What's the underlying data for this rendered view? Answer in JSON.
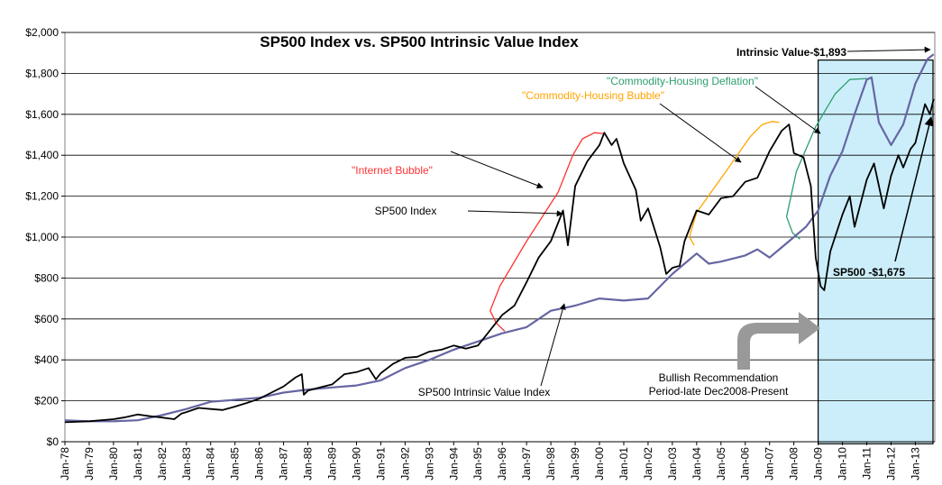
{
  "chart_data": {
    "type": "line",
    "title": "SP500 Index vs. SP500 Intrinsic Value Index",
    "xlabel": "",
    "ylabel": "",
    "ylim": [
      0,
      2000
    ],
    "grid": "horizontal",
    "y_ticks": [
      "$0",
      "$200",
      "$400",
      "$600",
      "$800",
      "$1,000",
      "$1,200",
      "$1,400",
      "$1,600",
      "$1,800",
      "$2,000"
    ],
    "x_ticks": [
      "Jan-78",
      "Jan-79",
      "Jan-80",
      "Jan-81",
      "Jan-82",
      "Jan-83",
      "Jan-84",
      "Jan-85",
      "Jan-86",
      "Jan-87",
      "Jan-88",
      "Jan-89",
      "Jan-90",
      "Jan-91",
      "Jan-92",
      "Jan-93",
      "Jan-94",
      "Jan-95",
      "Jan-96",
      "Jan-97",
      "Jan-98",
      "Jan-99",
      "Jan-00",
      "Jan-01",
      "Jan-02",
      "Jan-03",
      "Jan-04",
      "Jan-05",
      "Jan-06",
      "Jan-07",
      "Jan-08",
      "Jan-09",
      "Jan-10",
      "Jan-11",
      "Jan-12",
      "Jan-13"
    ],
    "series": [
      {
        "name": "SP500 Index",
        "color": "#000000",
        "points": [
          [
            1978.0,
            95
          ],
          [
            1979.0,
            100
          ],
          [
            1980.0,
            110
          ],
          [
            1980.5,
            120
          ],
          [
            1981.0,
            133
          ],
          [
            1981.5,
            125
          ],
          [
            1982.0,
            118
          ],
          [
            1982.5,
            110
          ],
          [
            1982.8,
            138
          ],
          [
            1983.0,
            145
          ],
          [
            1983.5,
            165
          ],
          [
            1984.0,
            160
          ],
          [
            1984.5,
            155
          ],
          [
            1985.0,
            172
          ],
          [
            1985.5,
            190
          ],
          [
            1986.0,
            210
          ],
          [
            1986.5,
            240
          ],
          [
            1987.0,
            270
          ],
          [
            1987.5,
            315
          ],
          [
            1987.75,
            330
          ],
          [
            1987.83,
            230
          ],
          [
            1988.0,
            250
          ],
          [
            1988.5,
            265
          ],
          [
            1989.0,
            280
          ],
          [
            1989.5,
            330
          ],
          [
            1990.0,
            340
          ],
          [
            1990.5,
            360
          ],
          [
            1990.8,
            305
          ],
          [
            1991.0,
            335
          ],
          [
            1991.5,
            380
          ],
          [
            1992.0,
            410
          ],
          [
            1992.5,
            415
          ],
          [
            1993.0,
            440
          ],
          [
            1993.5,
            450
          ],
          [
            1994.0,
            470
          ],
          [
            1994.5,
            455
          ],
          [
            1995.0,
            470
          ],
          [
            1995.5,
            545
          ],
          [
            1996.0,
            620
          ],
          [
            1996.5,
            665
          ],
          [
            1997.0,
            780
          ],
          [
            1997.5,
            900
          ],
          [
            1998.0,
            980
          ],
          [
            1998.5,
            1130
          ],
          [
            1998.7,
            960
          ],
          [
            1999.0,
            1250
          ],
          [
            1999.5,
            1370
          ],
          [
            2000.0,
            1450
          ],
          [
            2000.2,
            1510
          ],
          [
            2000.5,
            1450
          ],
          [
            2000.7,
            1480
          ],
          [
            2001.0,
            1360
          ],
          [
            2001.5,
            1230
          ],
          [
            2001.7,
            1080
          ],
          [
            2002.0,
            1140
          ],
          [
            2002.5,
            950
          ],
          [
            2002.75,
            820
          ],
          [
            2003.0,
            850
          ],
          [
            2003.3,
            860
          ],
          [
            2003.5,
            980
          ],
          [
            2004.0,
            1130
          ],
          [
            2004.5,
            1110
          ],
          [
            2005.0,
            1190
          ],
          [
            2005.5,
            1200
          ],
          [
            2006.0,
            1270
          ],
          [
            2006.5,
            1290
          ],
          [
            2007.0,
            1420
          ],
          [
            2007.5,
            1520
          ],
          [
            2007.8,
            1550
          ],
          [
            2008.0,
            1410
          ],
          [
            2008.4,
            1390
          ],
          [
            2008.7,
            1250
          ],
          [
            2008.9,
            900
          ],
          [
            2009.1,
            760
          ],
          [
            2009.25,
            740
          ],
          [
            2009.5,
            930
          ],
          [
            2010.0,
            1110
          ],
          [
            2010.3,
            1200
          ],
          [
            2010.5,
            1050
          ],
          [
            2011.0,
            1280
          ],
          [
            2011.3,
            1360
          ],
          [
            2011.7,
            1140
          ],
          [
            2012.0,
            1300
          ],
          [
            2012.3,
            1400
          ],
          [
            2012.5,
            1340
          ],
          [
            2012.8,
            1430
          ],
          [
            2013.0,
            1460
          ],
          [
            2013.4,
            1650
          ],
          [
            2013.6,
            1600
          ],
          [
            2013.75,
            1675
          ]
        ]
      },
      {
        "name": "SP500 Intrinsic Value Index",
        "color": "#6666a3",
        "points": [
          [
            1978.0,
            105
          ],
          [
            1979.0,
            100
          ],
          [
            1980.0,
            100
          ],
          [
            1981.0,
            105
          ],
          [
            1982.0,
            130
          ],
          [
            1983.0,
            160
          ],
          [
            1984.0,
            195
          ],
          [
            1985.0,
            205
          ],
          [
            1986.0,
            215
          ],
          [
            1987.0,
            240
          ],
          [
            1988.0,
            255
          ],
          [
            1989.0,
            265
          ],
          [
            1990.0,
            275
          ],
          [
            1991.0,
            300
          ],
          [
            1992.0,
            360
          ],
          [
            1993.0,
            400
          ],
          [
            1994.0,
            450
          ],
          [
            1995.0,
            490
          ],
          [
            1996.0,
            530
          ],
          [
            1997.0,
            560
          ],
          [
            1998.0,
            640
          ],
          [
            1999.0,
            665
          ],
          [
            2000.0,
            700
          ],
          [
            2001.0,
            690
          ],
          [
            2002.0,
            700
          ],
          [
            2003.0,
            820
          ],
          [
            2004.0,
            920
          ],
          [
            2004.5,
            870
          ],
          [
            2005.0,
            880
          ],
          [
            2006.0,
            910
          ],
          [
            2006.5,
            940
          ],
          [
            2007.0,
            900
          ],
          [
            2007.5,
            950
          ],
          [
            2008.0,
            1000
          ],
          [
            2008.5,
            1050
          ],
          [
            2009.0,
            1130
          ],
          [
            2009.5,
            1300
          ],
          [
            2010.0,
            1420
          ],
          [
            2010.5,
            1600
          ],
          [
            2011.0,
            1770
          ],
          [
            2011.2,
            1780
          ],
          [
            2011.5,
            1560
          ],
          [
            2012.0,
            1450
          ],
          [
            2012.5,
            1550
          ],
          [
            2013.0,
            1750
          ],
          [
            2013.5,
            1870
          ],
          [
            2013.75,
            1893
          ]
        ]
      }
    ],
    "annotations": {
      "internet_bubble": "\"Internet Bubble\"",
      "commodity_housing_bubble": "\"Commodity-Housing Bubble\"",
      "commodity_housing_deflation": "\"Commodity-Housing Deflation\"",
      "sp500_label": "SP500 Index",
      "iv_label": "SP500 Intrinsic Value Index",
      "intrinsic_value_end": "Intrinsic Value-$1,893",
      "sp500_end": "SP500 -$1,675",
      "bullish_line1": "Bullish Recommendation",
      "bullish_line2": "Period-late Dec2008-Present"
    },
    "colors": {
      "internet_bubble": "#ff3333",
      "commodity_housing_bubble": "#ffa500",
      "commodity_housing_deflation": "#2e9e6e",
      "highlight_fill": "#cceefa",
      "highlight_border": "#000000",
      "recommend_arrow": "#999999"
    }
  }
}
